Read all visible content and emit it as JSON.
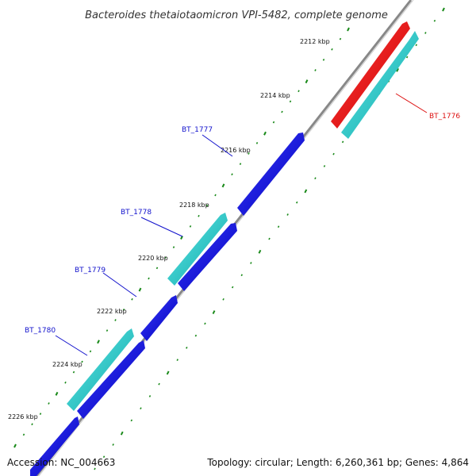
{
  "title": "Bacteroides thetaiotaomicron VPI-5482, complete genome",
  "footer": {
    "accession": "Accession: NC_004663",
    "topology": "Topology: circular; Length: 6,260,361 bp; Genes: 4,864"
  },
  "colors": {
    "backbone": "#888888",
    "gene_forward": "#1111dd",
    "gene_cds": "#22cccc",
    "gene_highlight": "#ee1111",
    "tick": "#1a8a1a",
    "label_blue": "#1111cc",
    "label_red": "#dd1111"
  },
  "ticks": [
    {
      "label": "2212 kbp"
    },
    {
      "label": "2214 kbp"
    },
    {
      "label": "2216 kbp"
    },
    {
      "label": "2218 kbp"
    },
    {
      "label": "2220 kbp"
    },
    {
      "label": "2222 kbp"
    },
    {
      "label": "2224 kbp"
    },
    {
      "label": "2226 kbp"
    }
  ],
  "genes": [
    {
      "name": "BT_1776",
      "color_key": "label_red"
    },
    {
      "name": "BT_1777",
      "color_key": "label_blue"
    },
    {
      "name": "BT_1778",
      "color_key": "label_blue"
    },
    {
      "name": "BT_1779",
      "color_key": "label_blue"
    },
    {
      "name": "BT_1780",
      "color_key": "label_blue"
    }
  ]
}
